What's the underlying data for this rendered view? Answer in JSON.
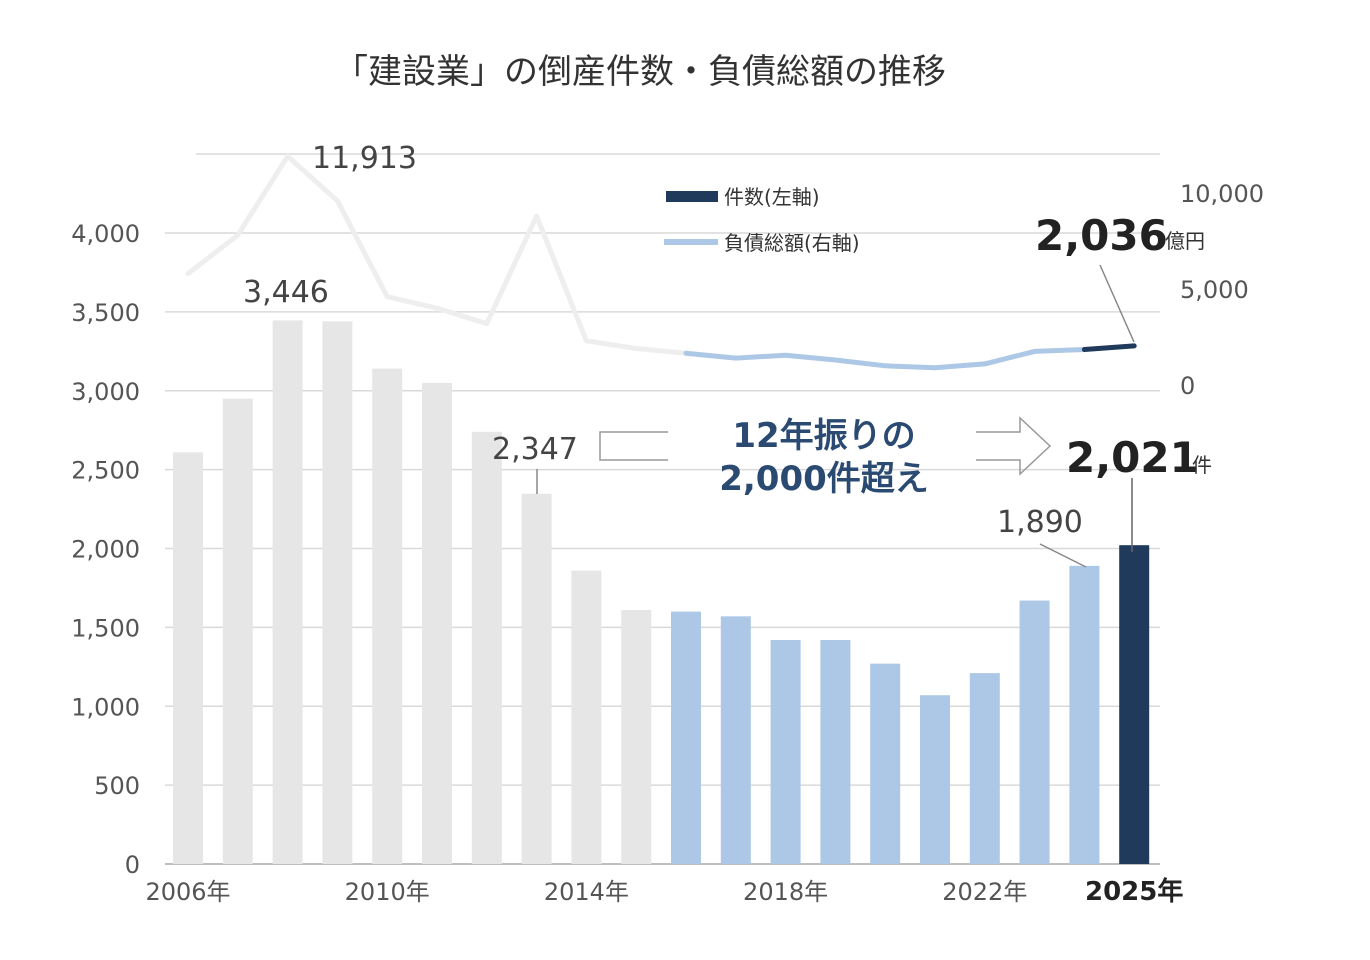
{
  "chart_data": {
    "type": "bar",
    "title": "「建設業」の倒産件数・負債総額の推移",
    "categories": [
      "2006",
      "2007",
      "2008",
      "2009",
      "2010",
      "2011",
      "2012",
      "2013",
      "2014",
      "2015",
      "2016",
      "2017",
      "2018",
      "2019",
      "2020",
      "2021",
      "2022",
      "2023",
      "2024",
      "2025"
    ],
    "x_tick_labels": [
      {
        "index": 0,
        "label": "2006年"
      },
      {
        "index": 4,
        "label": "2010年"
      },
      {
        "index": 8,
        "label": "2014年"
      },
      {
        "index": 12,
        "label": "2018年"
      },
      {
        "index": 16,
        "label": "2022年"
      },
      {
        "index": 19,
        "label": "2025年",
        "bold": true
      }
    ],
    "series": [
      {
        "name": "件数(左軸)",
        "axis": "left",
        "type": "bar",
        "values": [
          2610,
          2950,
          3446,
          3440,
          3140,
          3050,
          2740,
          2347,
          1860,
          1610,
          1600,
          1570,
          1420,
          1420,
          1270,
          1070,
          1210,
          1670,
          1890,
          2021
        ]
      },
      {
        "name": "負債総額(右軸)",
        "axis": "right",
        "type": "line",
        "values": [
          5800,
          7800,
          11913,
          9600,
          4600,
          4000,
          3200,
          8800,
          2300,
          1900,
          1650,
          1400,
          1550,
          1300,
          1000,
          900,
          1100,
          1750,
          1850,
          2036
        ]
      }
    ],
    "left_axis": {
      "min": 0,
      "max": 4000,
      "ticks": [
        "0",
        "500",
        "1,000",
        "1,500",
        "2,000",
        "2,500",
        "3,000",
        "3,500",
        "4,000"
      ]
    },
    "right_axis": {
      "min": 0,
      "max": 10000,
      "ticks": [
        "0",
        "5,000",
        "10,000"
      ]
    },
    "grid": true,
    "legend_position": "top-right",
    "annotations": {
      "line_peak": "11,913",
      "bar_peak": "3,446",
      "bar_2013": "2,347",
      "bar_2024": "1,890",
      "line_last": "2,036",
      "line_last_unit": "億円",
      "bar_last": "2,021",
      "bar_last_unit": "件",
      "callout_line1": "12年振りの",
      "callout_line2": "2,000件超え"
    },
    "colors": {
      "past": "#e6e6e6",
      "recent": "#adc8e6",
      "current": "#203a5c",
      "line_past": "#eeeeee",
      "line_recent": "#adc8e6",
      "line_current": "#203a5c",
      "grid": "#d9d9d9"
    }
  }
}
